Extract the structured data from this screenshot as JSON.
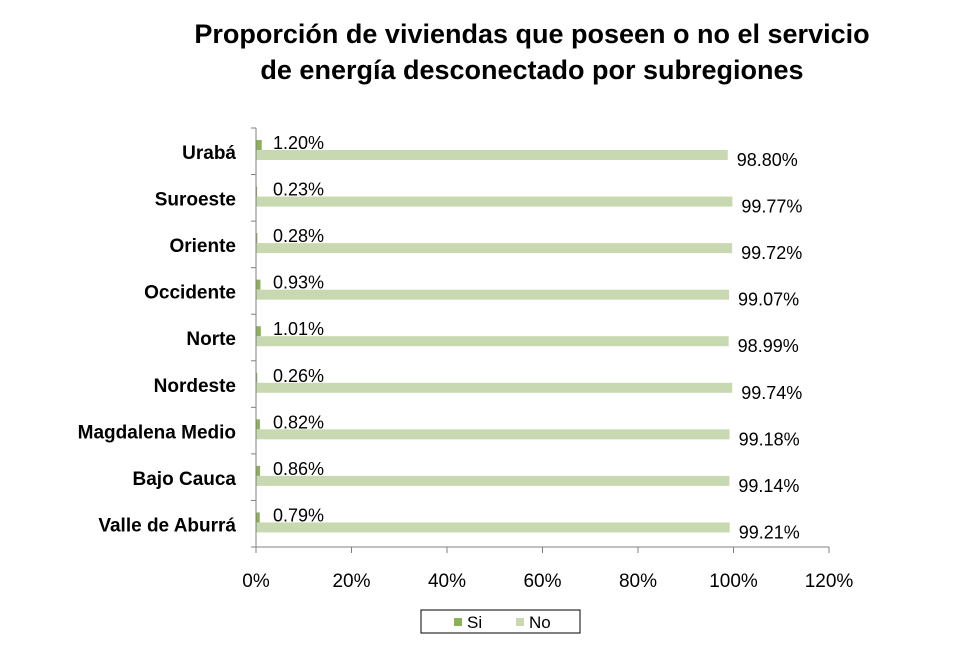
{
  "chart_data": {
    "type": "bar",
    "orientation": "horizontal",
    "title_lines": [
      "Proporción de viviendas que poseen o no el servicio",
      "de energía desconectado por subregiones"
    ],
    "categories": [
      "Urabá",
      "Suroeste",
      "Oriente",
      "Occidente",
      "Norte",
      "Nordeste",
      "Magdalena Medio",
      "Bajo Cauca",
      "Valle de Aburrá"
    ],
    "series": [
      {
        "name": "Si",
        "color": "#8fb05a",
        "values": [
          1.2,
          0.23,
          0.28,
          0.93,
          1.01,
          0.26,
          0.82,
          0.86,
          0.79
        ],
        "labels": [
          "1.20%",
          "0.23%",
          "0.28%",
          "0.93%",
          "1.01%",
          "0.26%",
          "0.82%",
          "0.86%",
          "0.79%"
        ]
      },
      {
        "name": "No",
        "color": "#c8d8b0",
        "values": [
          98.8,
          99.77,
          99.72,
          99.07,
          98.99,
          99.74,
          99.18,
          99.14,
          99.21
        ],
        "labels": [
          "98.80%",
          "99.77%",
          "99.72%",
          "99.07%",
          "98.99%",
          "99.74%",
          "99.18%",
          "99.14%",
          "99.21%"
        ]
      }
    ],
    "xlim": [
      0,
      120
    ],
    "xticks": [
      0,
      20,
      40,
      60,
      80,
      100,
      120
    ],
    "xtick_labels": [
      "0%",
      "20%",
      "40%",
      "60%",
      "80%",
      "100%",
      "120%"
    ],
    "grid": false,
    "legend_position": "bottom"
  }
}
